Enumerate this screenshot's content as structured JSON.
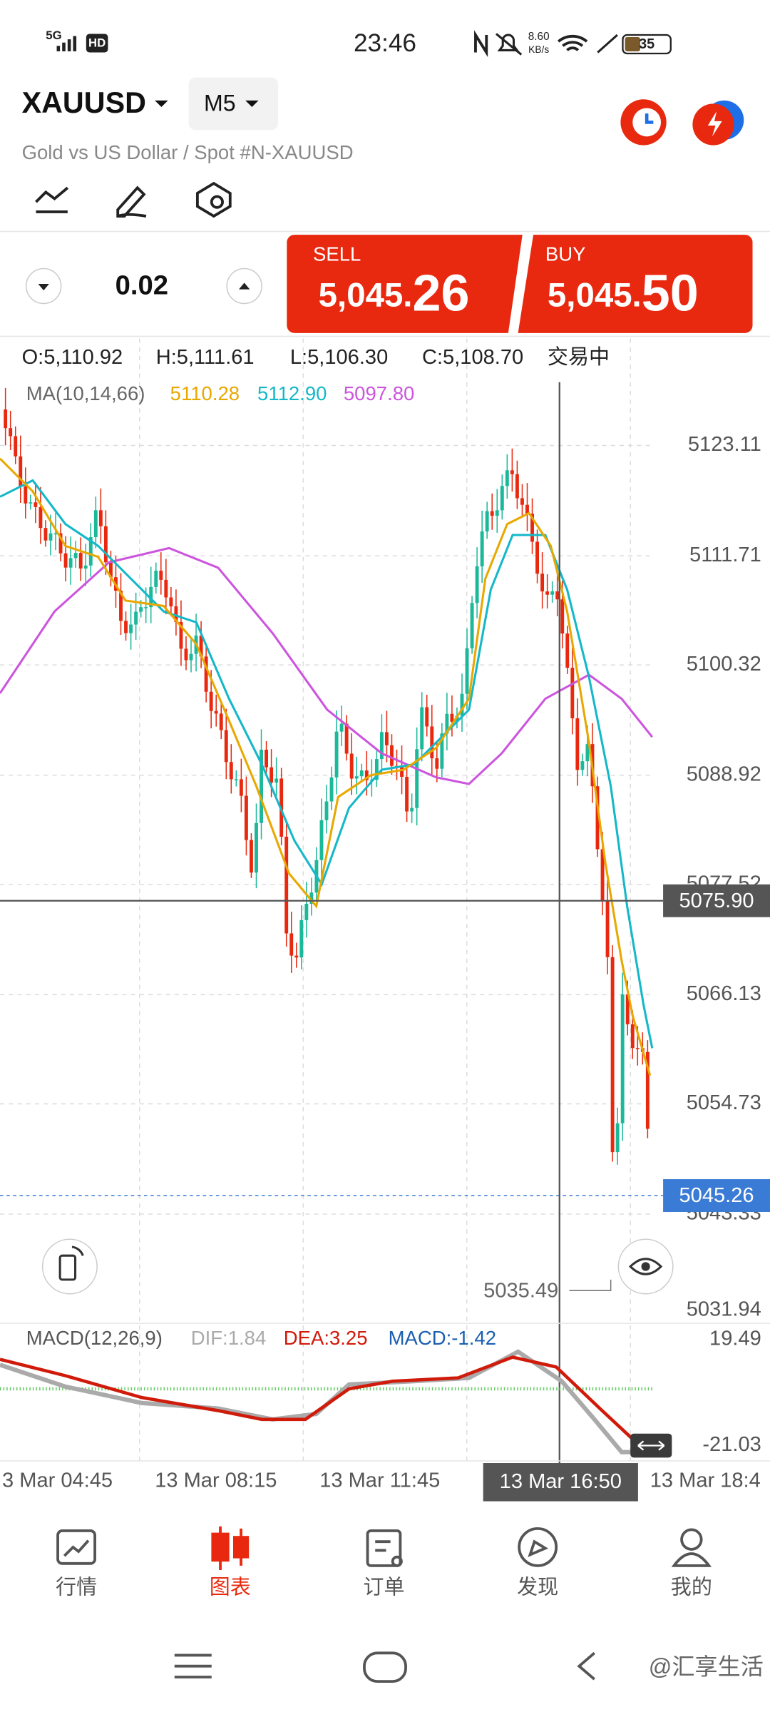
{
  "status_bar": {
    "network": "5G",
    "hd": "HD",
    "time": "23:46",
    "speed": "8.60",
    "speed_unit": "KB/s",
    "battery": "35"
  },
  "header": {
    "symbol": "XAUUSD",
    "timeframe": "M5",
    "description": "Gold vs US Dollar / Spot #N-XAUUSD"
  },
  "trade": {
    "volume": "0.02",
    "sell": {
      "label": "SELL",
      "price_main": "5,045.",
      "price_big": "26"
    },
    "buy": {
      "label": "BUY",
      "price_main": "5,045.",
      "price_big": "50"
    }
  },
  "ohlc": {
    "open": "O:5,110.92",
    "high": "H:5,111.61",
    "low": "L:5,106.30",
    "close": "C:5,108.70",
    "status": "交易中"
  },
  "ma": {
    "label": "MA(10,14,66)",
    "values": [
      "5110.28",
      "5112.90",
      "5097.80"
    ]
  },
  "price_axis": [
    "5123.11",
    "5111.71",
    "5100.32",
    "5088.92",
    "5077.52",
    "5066.13",
    "5054.73",
    "5043.33",
    "5031.94"
  ],
  "crosshair_price": "5075.90",
  "current_price": "5045.26",
  "low_label": "5035.49",
  "macd": {
    "label": "MACD(12,26,9)",
    "dif": "DIF:1.84",
    "dea": "DEA:3.25",
    "macd": "MACD:-1.42",
    "axis": [
      "19.49",
      "-21.03"
    ]
  },
  "time_axis": [
    "3 Mar 04:45",
    "13 Mar 08:15",
    "13 Mar 11:45",
    "13 Mar 18:4"
  ],
  "crosshair_time": "13 Mar 16:50",
  "nav": [
    "行情",
    "图表",
    "订单",
    "发现",
    "我的"
  ],
  "watermark": "@汇享生活"
}
